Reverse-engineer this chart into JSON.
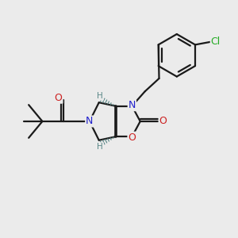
{
  "background_color": "#ebebeb",
  "atom_colors": {
    "C": "#1a1a1a",
    "N": "#2020cc",
    "O": "#cc2020",
    "Cl": "#22aa22",
    "H": "#5a8888"
  },
  "bond_color": "#1a1a1a",
  "figsize": [
    3.0,
    3.0
  ],
  "dpi": 100
}
